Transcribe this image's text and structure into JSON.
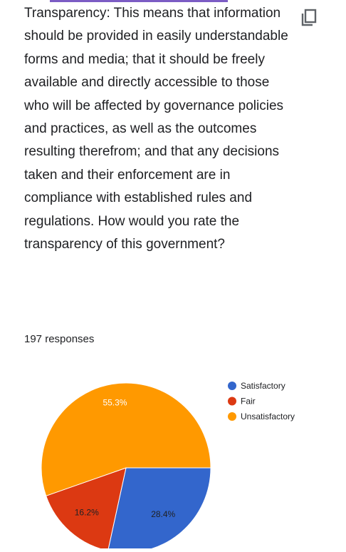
{
  "question": {
    "text": "Transparency: This means that information should be provided in easily understandable forms and media; that it should be freely available and directly accessible to those who will be affected by governance policies and practices, as well as the outcomes resulting therefrom; and that any decisions taken and their enforcement are in compliance with established rules and regulations. How would you rate the transparency of this government?"
  },
  "responses_label": "197 responses",
  "icons": {
    "copy": "copy-icon"
  },
  "colors": {
    "accent": "#7c5cc4"
  },
  "chart_data": {
    "type": "pie",
    "title": "",
    "legend_position": "right",
    "slices": [
      {
        "label": "Satisfactory",
        "value": 28.4,
        "display": "28.4%",
        "color": "#3366cc"
      },
      {
        "label": "Fair",
        "value": 16.2,
        "display": "16.2%",
        "color": "#dc3912"
      },
      {
        "label": "Unsatisfactory",
        "value": 55.3,
        "display": "55.3%",
        "color": "#ff9900"
      }
    ]
  }
}
